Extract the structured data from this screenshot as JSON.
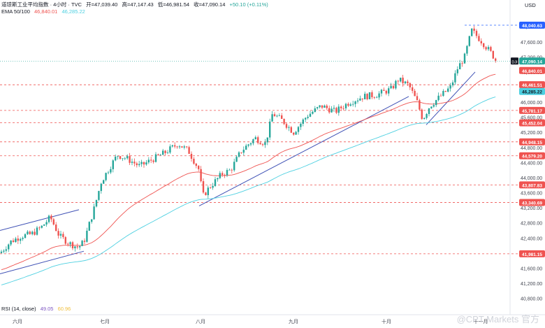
{
  "header": {
    "symbol": "道琼斯工业平均指数 · 4小时 · TVC",
    "open": "开=47,039.40",
    "high": "高=47,147.43",
    "low": "低=46,981.54",
    "close": "收=47,090.14",
    "change": "+50.10 (+0.11%)",
    "ema_label": "EMA 50/100",
    "ema50": "46,840.01",
    "ema100": "46,285.22",
    "rsi_label": "RSI (14, close)",
    "rsi_value": "49.05",
    "rsi_ma": "60.96"
  },
  "currency": "USD",
  "watermark": "@CPT Markets 官方",
  "colors": {
    "up": "#26a69a",
    "down": "#ef5350",
    "ema50": "#ef5350",
    "ema100": "#4dd0e1",
    "trend": "#3f51b5",
    "price_tag": "#26a69a"
  },
  "chart_data": {
    "type": "candlestick",
    "x_labels": [
      "六月",
      "七月",
      "八月",
      "九月",
      "十月",
      "十一月"
    ],
    "y_ticks": [
      "40,800.00",
      "41,200.00",
      "41,600.00",
      "42,000.00",
      "42,400.00",
      "42,800.00",
      "43,200.00",
      "43,600.00",
      "44,000.00",
      "44,400.00",
      "44,800.00",
      "45,200.00",
      "45,600.00",
      "46,000.00",
      "46,400.00",
      "46,800.00",
      "47,200.00",
      "47,600.00",
      "48,000.00"
    ],
    "ylim": [
      40700,
      48300
    ],
    "current_price": {
      "label": "DJI",
      "value": "47,090.14"
    },
    "ema50_tag": "46,840.01",
    "ema100_tag": "46,285.22",
    "levels": [
      {
        "value": "48,040.63",
        "style": "blue"
      },
      {
        "value": "46,461.51",
        "style": "red"
      },
      {
        "value": "45,781.17",
        "style": "red"
      },
      {
        "value": "45,452.04",
        "style": "red"
      },
      {
        "value": "44,948.15",
        "style": "red"
      },
      {
        "value": "44,579.20",
        "style": "red"
      },
      {
        "value": "43,807.83",
        "style": "red"
      },
      {
        "value": "43,340.69",
        "style": "red"
      },
      {
        "value": "41,981.15",
        "style": "red"
      }
    ],
    "path_anchors": [
      [
        0,
        42000
      ],
      [
        15,
        42300
      ],
      [
        30,
        42450
      ],
      [
        45,
        42500
      ],
      [
        60,
        42700
      ],
      [
        72,
        42950
      ],
      [
        85,
        42450
      ],
      [
        100,
        42250
      ],
      [
        112,
        42150
      ],
      [
        120,
        42300
      ],
      [
        135,
        43200
      ],
      [
        145,
        43900
      ],
      [
        158,
        44300
      ],
      [
        168,
        44600
      ],
      [
        182,
        44500
      ],
      [
        200,
        44300
      ],
      [
        215,
        44450
      ],
      [
        235,
        44650
      ],
      [
        255,
        44900
      ],
      [
        270,
        44700
      ],
      [
        285,
        44200
      ],
      [
        290,
        43500
      ],
      [
        300,
        43750
      ],
      [
        318,
        44100
      ],
      [
        330,
        44200
      ],
      [
        345,
        44700
      ],
      [
        365,
        45050
      ],
      [
        380,
        44900
      ],
      [
        390,
        45700
      ],
      [
        405,
        45500
      ],
      [
        420,
        45200
      ],
      [
        440,
        45650
      ],
      [
        460,
        45900
      ],
      [
        480,
        45750
      ],
      [
        500,
        46000
      ],
      [
        520,
        46150
      ],
      [
        540,
        46200
      ],
      [
        560,
        46350
      ],
      [
        570,
        46600
      ],
      [
        585,
        46450
      ],
      [
        597,
        46000
      ],
      [
        605,
        45550
      ],
      [
        615,
        45900
      ],
      [
        630,
        46150
      ],
      [
        645,
        46400
      ],
      [
        655,
        46900
      ],
      [
        665,
        47200
      ],
      [
        675,
        47900
      ],
      [
        690,
        47600
      ],
      [
        705,
        47250
      ],
      [
        710,
        47090
      ]
    ],
    "trendlines": [
      [
        [
          0,
          42600
        ],
        [
          113,
          43150
        ]
      ],
      [
        [
          0,
          41450
        ],
        [
          120,
          42050
        ]
      ],
      [
        [
          285,
          43250
        ],
        [
          585,
          46150
        ]
      ],
      [
        [
          610,
          45400
        ],
        [
          680,
          46800
        ]
      ]
    ]
  }
}
